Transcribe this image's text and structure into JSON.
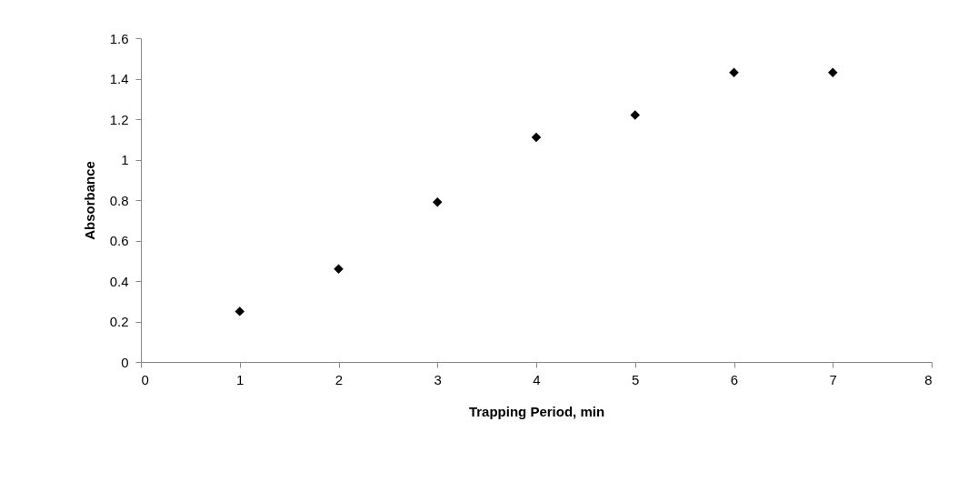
{
  "chart_data": {
    "type": "scatter",
    "xlabel": "Trapping Period, min",
    "ylabel": "Absorbance",
    "x": [
      1,
      2,
      3,
      4,
      5,
      6,
      7
    ],
    "series": [
      {
        "color": "#000000",
        "values": [
          0.25,
          0.46,
          0.79,
          1.11,
          1.22,
          1.43,
          1.43
        ]
      }
    ],
    "xlim": [
      0,
      8
    ],
    "xticks": [
      0,
      1,
      2,
      3,
      4,
      5,
      6,
      7,
      8
    ],
    "ylim": [
      0,
      1.6
    ],
    "yticks": [
      0,
      0.2,
      0.4,
      0.6,
      0.8,
      1,
      1.2,
      1.4,
      1.6
    ],
    "marker": "diamond",
    "grid": false
  }
}
